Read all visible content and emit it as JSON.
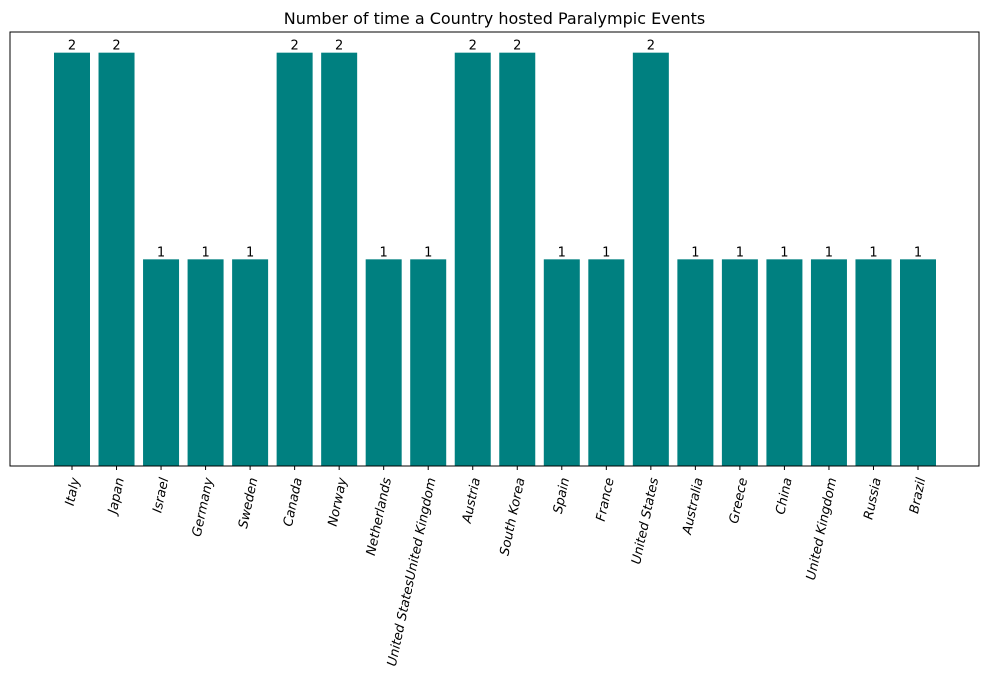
{
  "chart_data": {
    "type": "bar",
    "title": "Number of time a Country hosted Paralympic Events",
    "xlabel": "",
    "ylabel": "",
    "categories": [
      "Italy",
      "Japan",
      "Israel",
      "Germany",
      "Sweden",
      "Canada",
      "Norway",
      "Netherlands",
      "United StatesUnited Kingdom",
      "Austria",
      "South Korea",
      "Spain",
      "France",
      "United States",
      "Australia",
      "Greece",
      "China",
      "United Kingdom",
      "Russia",
      "Brazil"
    ],
    "values": [
      2,
      2,
      1,
      1,
      1,
      2,
      2,
      1,
      1,
      2,
      2,
      1,
      1,
      2,
      1,
      1,
      1,
      1,
      1,
      1
    ],
    "ylim": [
      0,
      2.1
    ],
    "y_axis_visible": false,
    "data_labels": true,
    "tick_label_rotation": "rotated, italic",
    "grid": false,
    "bar_color": "#008080"
  }
}
